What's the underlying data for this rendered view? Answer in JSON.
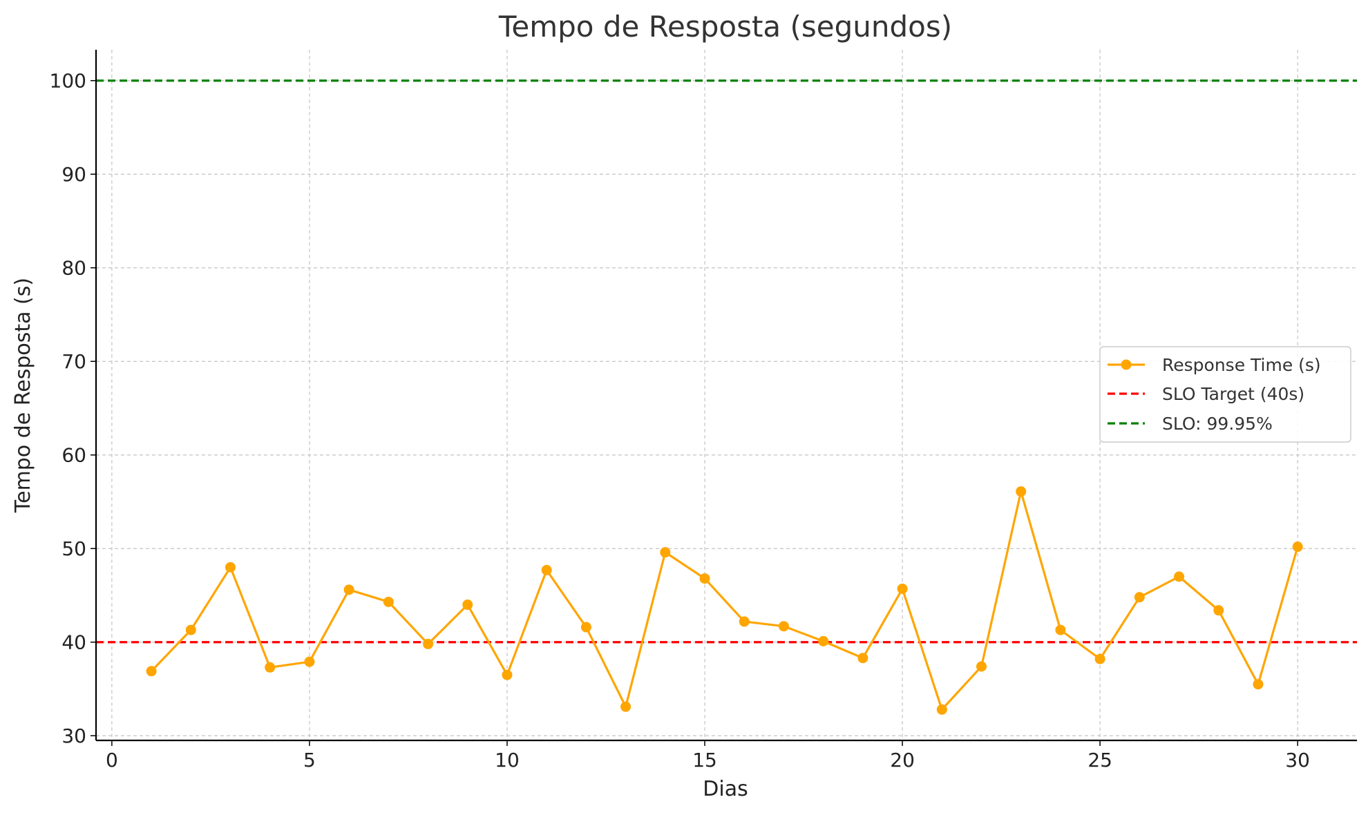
{
  "chart_data": {
    "type": "line",
    "title": "Tempo de Resposta (segundos)",
    "xlabel": "Dias",
    "ylabel": "Tempo de Resposta (s)",
    "xlim": [
      -0.4,
      31.5
    ],
    "ylim": [
      29.5,
      103.3
    ],
    "xticks": [
      0,
      5,
      10,
      15,
      20,
      25,
      30
    ],
    "yticks": [
      30,
      40,
      50,
      60,
      70,
      80,
      90,
      100
    ],
    "grid": true,
    "legend_position": "center-right",
    "series": [
      {
        "name": "Response Time (s)",
        "kind": "line-markers",
        "color": "#FFA500",
        "x": [
          1,
          2,
          3,
          4,
          5,
          6,
          7,
          8,
          9,
          10,
          11,
          12,
          13,
          14,
          15,
          16,
          17,
          18,
          19,
          20,
          21,
          22,
          23,
          24,
          25,
          26,
          27,
          28,
          29,
          30
        ],
        "y": [
          36.9,
          41.3,
          48.0,
          37.3,
          37.9,
          45.6,
          44.3,
          39.8,
          44.0,
          36.5,
          47.7,
          41.6,
          33.1,
          49.6,
          46.8,
          42.2,
          41.7,
          40.1,
          38.3,
          45.7,
          32.8,
          37.4,
          56.1,
          41.3,
          38.2,
          44.8,
          47.0,
          43.4,
          35.5,
          50.2
        ]
      },
      {
        "name": "SLO Target (40s)",
        "kind": "hline-dashed",
        "color": "#FF0000",
        "y": 40
      },
      {
        "name": "SLO: 99.95%",
        "kind": "hline-dashed",
        "color": "#008000",
        "y": 100
      }
    ]
  }
}
